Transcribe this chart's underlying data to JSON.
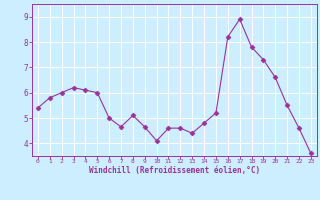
{
  "x": [
    0,
    1,
    2,
    3,
    4,
    5,
    6,
    7,
    8,
    9,
    10,
    11,
    12,
    13,
    14,
    15,
    16,
    17,
    18,
    19,
    20,
    21,
    22,
    23
  ],
  "y": [
    5.4,
    5.8,
    6.0,
    6.2,
    6.1,
    6.0,
    5.0,
    4.65,
    5.1,
    4.65,
    4.1,
    4.6,
    4.6,
    4.4,
    4.8,
    5.2,
    8.2,
    8.9,
    7.8,
    7.3,
    6.6,
    5.5,
    4.6,
    3.6
  ],
  "xlabel": "Windchill (Refroidissement éolien,°C)",
  "ylim": [
    3.5,
    9.5
  ],
  "xlim": [
    -0.5,
    23.5
  ],
  "xticks": [
    0,
    1,
    2,
    3,
    4,
    5,
    6,
    7,
    8,
    9,
    10,
    11,
    12,
    13,
    14,
    15,
    16,
    17,
    18,
    19,
    20,
    21,
    22,
    23
  ],
  "yticks": [
    4,
    5,
    6,
    7,
    8,
    9
  ],
  "line_color": "#993399",
  "marker": "D",
  "marker_size": 2.5,
  "background_color": "#cceeff",
  "grid_color": "#ffffff",
  "tick_color": "#993399",
  "label_color": "#993399",
  "figsize": [
    3.2,
    2.0
  ],
  "dpi": 100
}
